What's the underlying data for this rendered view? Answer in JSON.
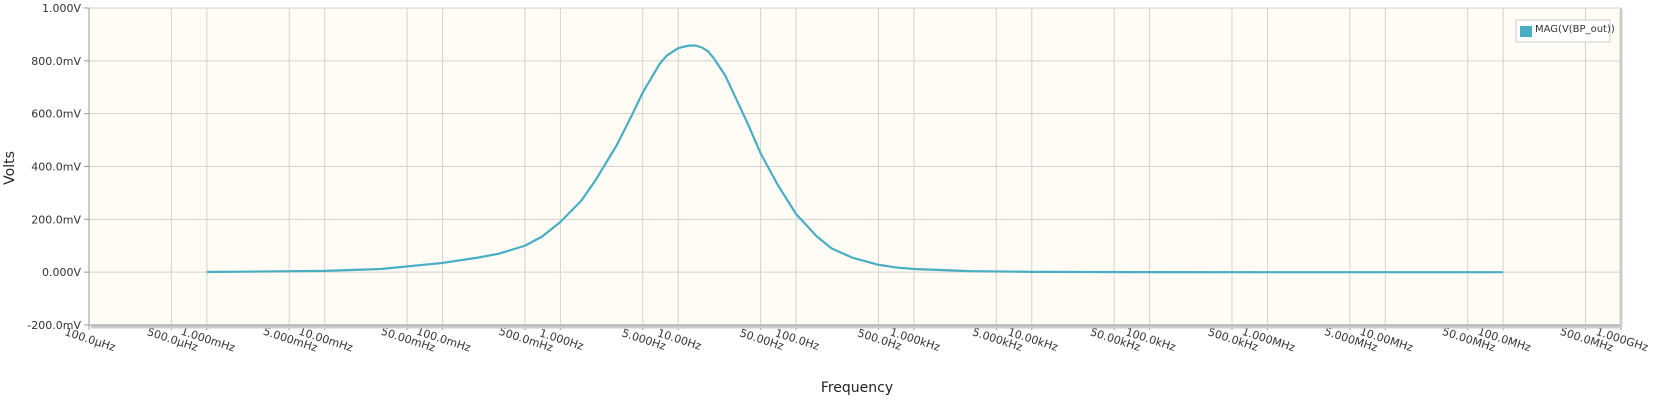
{
  "chart_data": {
    "type": "line",
    "xlabel": "Frequency",
    "ylabel": "Volts",
    "x_scale": "log",
    "xlim": [
      0.0001,
      1000000000
    ],
    "ylim": [
      -0.2,
      1.0
    ],
    "grid": true,
    "legend_position": "top-right",
    "x_ticks": [
      {
        "value": 0.0001,
        "label": "100.0μHz"
      },
      {
        "value": 0.0005,
        "label": "500.0μHz"
      },
      {
        "value": 0.001,
        "label": "1.000mHz"
      },
      {
        "value": 0.005,
        "label": "5.000mHz"
      },
      {
        "value": 0.01,
        "label": "10.00mHz"
      },
      {
        "value": 0.05,
        "label": "50.00mHz"
      },
      {
        "value": 0.1,
        "label": "100.0mHz"
      },
      {
        "value": 0.5,
        "label": "500.0mHz"
      },
      {
        "value": 1,
        "label": "1.000Hz"
      },
      {
        "value": 5,
        "label": "5.000Hz"
      },
      {
        "value": 10,
        "label": "10.00Hz"
      },
      {
        "value": 50,
        "label": "50.00Hz"
      },
      {
        "value": 100,
        "label": "100.0Hz"
      },
      {
        "value": 500,
        "label": "500.0Hz"
      },
      {
        "value": 1000,
        "label": "1.000kHz"
      },
      {
        "value": 5000,
        "label": "5.000kHz"
      },
      {
        "value": 10000,
        "label": "10.00kHz"
      },
      {
        "value": 50000,
        "label": "50.00kHz"
      },
      {
        "value": 100000,
        "label": "100.0kHz"
      },
      {
        "value": 500000,
        "label": "500.0kHz"
      },
      {
        "value": 1000000,
        "label": "1.000MHz"
      },
      {
        "value": 5000000,
        "label": "5.000MHz"
      },
      {
        "value": 10000000,
        "label": "10.00MHz"
      },
      {
        "value": 50000000,
        "label": "50.00MHz"
      },
      {
        "value": 100000000,
        "label": "100.0MHz"
      },
      {
        "value": 500000000,
        "label": "500.0MHz"
      },
      {
        "value": 1000000000,
        "label": "1.000GHz"
      }
    ],
    "y_ticks": [
      {
        "value": -0.2,
        "label": "-200.0mV"
      },
      {
        "value": 0.0,
        "label": "0.000V"
      },
      {
        "value": 0.2,
        "label": "200.0mV"
      },
      {
        "value": 0.4,
        "label": "400.0mV"
      },
      {
        "value": 0.6,
        "label": "600.0mV"
      },
      {
        "value": 0.8,
        "label": "800.0mV"
      },
      {
        "value": 1.0,
        "label": "1.000V"
      }
    ],
    "series": [
      {
        "name": "MAG(V(BP_out))",
        "color": "#4aaec2",
        "x": [
          0.001,
          0.01,
          0.03,
          0.1,
          0.2,
          0.3,
          0.5,
          0.7,
          1,
          1.5,
          2,
          3,
          4,
          5,
          6,
          7,
          8,
          10,
          12,
          14,
          16,
          18,
          20,
          25,
          30,
          40,
          50,
          70,
          100,
          150,
          200,
          300,
          500,
          700,
          1000,
          3000,
          10000,
          100000,
          1000000,
          10000000,
          100000000
        ],
        "y": [
          0.0005,
          0.005,
          0.012,
          0.035,
          0.055,
          0.07,
          0.1,
          0.135,
          0.19,
          0.27,
          0.35,
          0.48,
          0.59,
          0.68,
          0.74,
          0.79,
          0.82,
          0.848,
          0.857,
          0.858,
          0.85,
          0.835,
          0.81,
          0.745,
          0.67,
          0.55,
          0.45,
          0.33,
          0.22,
          0.135,
          0.09,
          0.055,
          0.028,
          0.018,
          0.012,
          0.004,
          0.0012,
          0.0001,
          0.0,
          0.0,
          0.0
        ]
      }
    ]
  }
}
